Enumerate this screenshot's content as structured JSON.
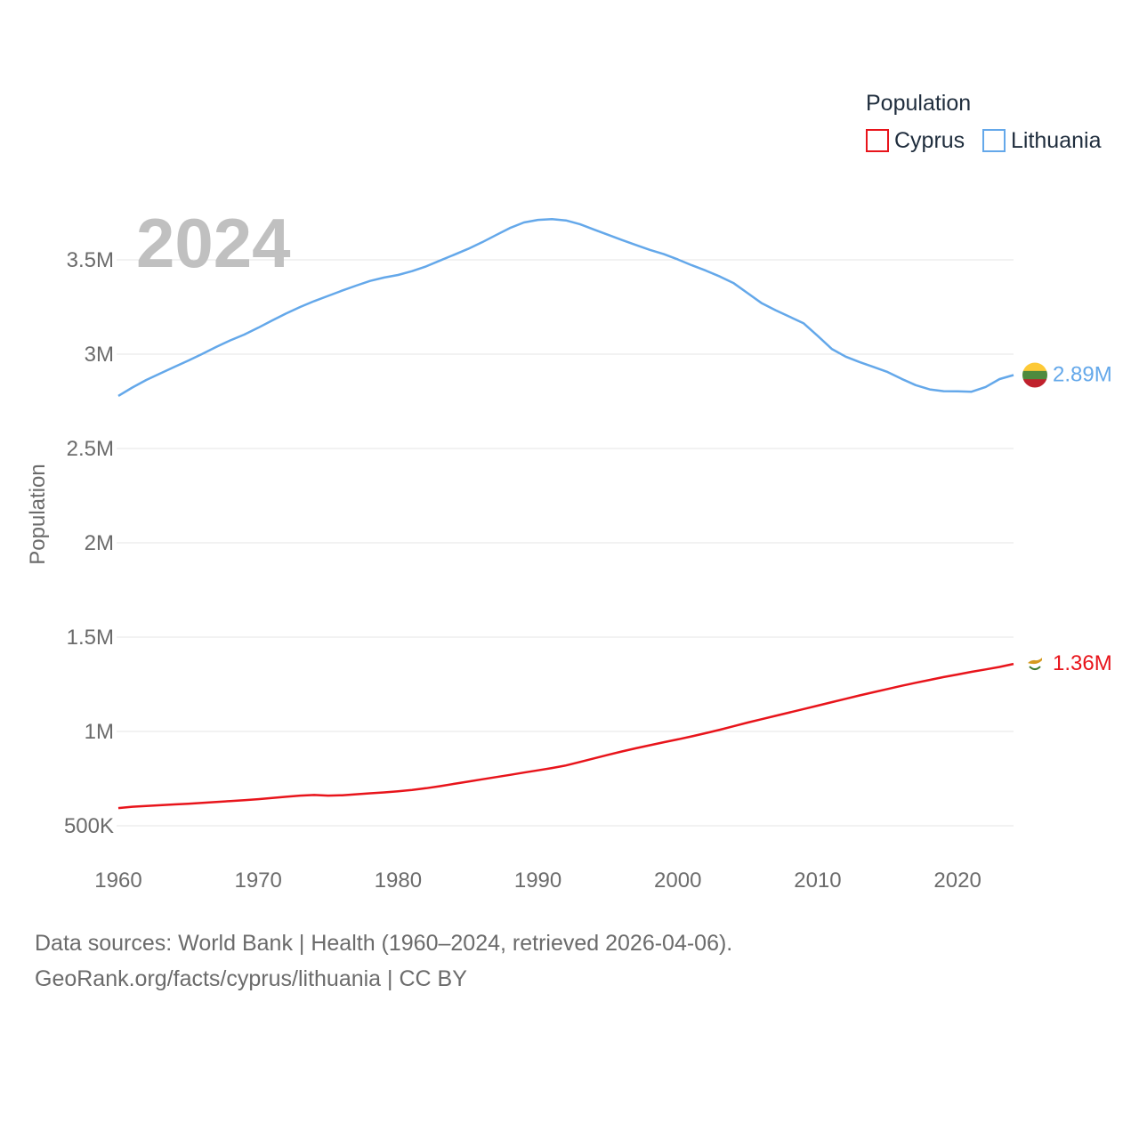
{
  "chart_data": {
    "type": "line",
    "title": "",
    "legend_title": "Population",
    "legend_position": "top-right",
    "ylabel": "Population",
    "xlabel": "",
    "year_label": "2024",
    "x": [
      1960,
      1961,
      1962,
      1963,
      1964,
      1965,
      1966,
      1967,
      1968,
      1969,
      1970,
      1971,
      1972,
      1973,
      1974,
      1975,
      1976,
      1977,
      1978,
      1979,
      1980,
      1981,
      1982,
      1983,
      1984,
      1985,
      1986,
      1987,
      1988,
      1989,
      1990,
      1991,
      1992,
      1993,
      1994,
      1995,
      1996,
      1997,
      1998,
      1999,
      2000,
      2001,
      2002,
      2003,
      2004,
      2005,
      2006,
      2007,
      2008,
      2009,
      2010,
      2011,
      2012,
      2013,
      2014,
      2015,
      2016,
      2017,
      2018,
      2019,
      2020,
      2021,
      2022,
      2023,
      2024
    ],
    "xlim": [
      1960,
      2024
    ],
    "ylim": [
      500000,
      3800000
    ],
    "x_ticks": [
      1960,
      1970,
      1980,
      1990,
      2000,
      2010,
      2020
    ],
    "x_tick_labels": [
      "1960",
      "1970",
      "1980",
      "1990",
      "2000",
      "2010",
      "2020"
    ],
    "y_ticks": [
      500000,
      1000000,
      1500000,
      2000000,
      2500000,
      3000000,
      3500000
    ],
    "y_tick_labels": [
      "500K",
      "1M",
      "1.5M",
      "2M",
      "2.5M",
      "3M",
      "3.5M"
    ],
    "grid": true,
    "series": [
      {
        "name": "Cyprus",
        "color": "#e8141b",
        "end_label": "1.36M",
        "flag_icon": "cyprus-flag-icon",
        "values": [
          594000,
          601000,
          605000,
          609000,
          613000,
          617000,
          621000,
          626000,
          631000,
          636000,
          641000,
          647000,
          654000,
          660000,
          663000,
          660000,
          662000,
          667000,
          672000,
          677000,
          683000,
          690000,
          699000,
          710000,
          722000,
          734000,
          746000,
          758000,
          770000,
          782000,
          794000,
          806000,
          820000,
          838000,
          857000,
          876000,
          894000,
          911000,
          927000,
          943000,
          958000,
          974000,
          991000,
          1009000,
          1028000,
          1047000,
          1065000,
          1083000,
          1101000,
          1119000,
          1137000,
          1155000,
          1173000,
          1191000,
          1208000,
          1225000,
          1242000,
          1258000,
          1273000,
          1288000,
          1302000,
          1316000,
          1329000,
          1342000,
          1358000
        ]
      },
      {
        "name": "Lithuania",
        "color": "#64a8ea",
        "end_label": "2.89M",
        "flag_icon": "lithuania-flag-icon",
        "values": [
          2779000,
          2823000,
          2863000,
          2898000,
          2932000,
          2966000,
          3001000,
          3038000,
          3073000,
          3104000,
          3140000,
          3179000,
          3216000,
          3250000,
          3281000,
          3309000,
          3337000,
          3363000,
          3388000,
          3406000,
          3420000,
          3440000,
          3465000,
          3496000,
          3527000,
          3558000,
          3593000,
          3631000,
          3669000,
          3698000,
          3712000,
          3716000,
          3709000,
          3689000,
          3661000,
          3633000,
          3605000,
          3579000,
          3553000,
          3530000,
          3502000,
          3471000,
          3443000,
          3412000,
          3376000,
          3323000,
          3270000,
          3232000,
          3198000,
          3163000,
          3097000,
          3028000,
          2987000,
          2958000,
          2932000,
          2905000,
          2869000,
          2836000,
          2813000,
          2804000,
          2803000,
          2801000,
          2826000,
          2868000,
          2889000
        ]
      }
    ]
  },
  "footer": {
    "sources_line": "Data sources: World Bank | Health (1960–2024, retrieved 2026-04-06).",
    "url_line": "GeoRank.org/facts/cyprus/lithuania | CC BY"
  }
}
